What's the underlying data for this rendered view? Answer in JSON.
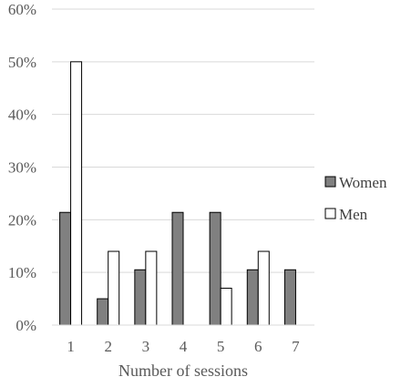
{
  "chart_data": {
    "type": "bar",
    "title": "",
    "xlabel": "Number of sessions",
    "ylabel": "",
    "categories": [
      "1",
      "2",
      "3",
      "4",
      "5",
      "6",
      "7"
    ],
    "ylim": [
      0,
      60
    ],
    "yticks": [
      "0%",
      "10%",
      "20%",
      "30%",
      "40%",
      "50%",
      "60%"
    ],
    "y_tick_values": [
      0,
      10,
      20,
      30,
      40,
      50,
      60
    ],
    "grid": true,
    "legend_position": "right",
    "series": [
      {
        "name": "Women",
        "color": "#808080",
        "values": [
          21.4,
          5,
          10.5,
          21.4,
          21.4,
          10.5,
          10.5
        ]
      },
      {
        "name": "Men",
        "color": "#ffffff",
        "values": [
          50,
          14,
          14,
          0,
          7,
          14,
          0
        ]
      }
    ]
  }
}
